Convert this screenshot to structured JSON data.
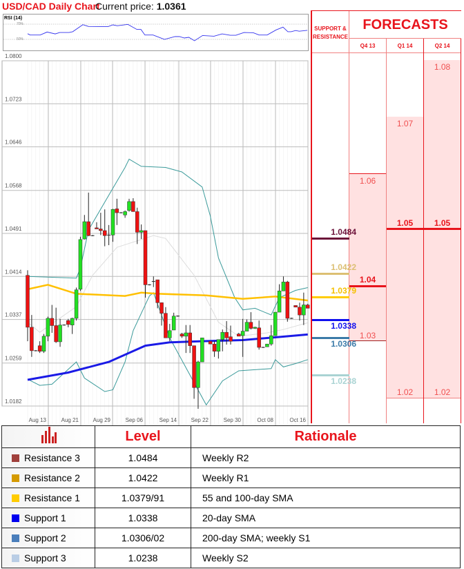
{
  "header": {
    "title": "USD/CAD Daily Chart",
    "current_price_label": "Current price:",
    "current_price": "1.0361"
  },
  "rsi": {
    "label": "RSI (14)",
    "levels": [
      "70%",
      "50%"
    ],
    "color": "#3333ee"
  },
  "forecast_panel": {
    "title": "FORECASTS",
    "sr_header": "SUPPORT & RESISTANCE",
    "quarters": [
      {
        "label": "Q4 13",
        "high": "1.06",
        "central": "1.04",
        "low": "1.03"
      },
      {
        "label": "Q1 14",
        "high": "1.07",
        "central": "1.05",
        "low": "1.02"
      },
      {
        "label": "Q2 14",
        "high": "1.08",
        "central": "1.05",
        "low": "1.02"
      }
    ],
    "sr_levels": [
      {
        "value": "1.0484",
        "color": "#6b1038"
      },
      {
        "value": "1.0422",
        "color": "#dcbf72"
      },
      {
        "value": "1.0379",
        "color": "#ffcc00"
      },
      {
        "value": "1.0338",
        "color": "#1010ee"
      },
      {
        "value": "1.0306",
        "color": "#3a7aa8"
      },
      {
        "value": "1.0238",
        "color": "#a9d3d3"
      }
    ],
    "accent_color": "#e8141c"
  },
  "table": {
    "headers": [
      "",
      "Level",
      "Rationale"
    ],
    "header_icon": "bar-chart-icon",
    "rows": [
      {
        "name": "Resistance 3",
        "level": "1.0484",
        "rationale": "Weekly R2",
        "color": "#a0403c"
      },
      {
        "name": "Resistance 2",
        "level": "1.0422",
        "rationale": "Weekly R1",
        "color": "#d49a00"
      },
      {
        "name": "Resistance 1",
        "level": "1.0379/91",
        "rationale": "55 and 100-day SMA",
        "color": "#ffcc00"
      },
      {
        "name": "Support 1",
        "level": "1.0338",
        "rationale": "20-day SMA",
        "color": "#0000ee"
      },
      {
        "name": "Support 2",
        "level": "1.0306/02",
        "rationale": "200-day SMA; weekly S1",
        "color": "#4a7ebb"
      },
      {
        "name": "Support 3",
        "level": "1.0238",
        "rationale": "Weekly S2",
        "color": "#b9cde5"
      }
    ]
  },
  "chart_data": {
    "type": "candlestick",
    "title": "USD/CAD Daily Chart",
    "ylim": [
      1.0182,
      1.08
    ],
    "y_ticks": [
      "1.0800",
      "1.0723",
      "1.0646",
      "1.0568",
      "1.0491",
      "1.0414",
      "1.0337",
      "1.0259",
      "1.0182"
    ],
    "x_ticks": [
      "Aug 13",
      "Aug 21",
      "Aug 29",
      "Sep 06",
      "Sep 14",
      "Sep 22",
      "Sep 30",
      "Oct 08",
      "Oct 16"
    ],
    "grid": true,
    "candle_format": [
      "open",
      "high",
      "low",
      "close"
    ],
    "candles": [
      [
        1.0416,
        1.0425,
        1.0298,
        1.0323
      ],
      [
        1.0323,
        1.0345,
        1.027,
        1.0281
      ],
      [
        1.0281,
        1.0282,
        1.028,
        1.0281
      ],
      [
        1.029,
        1.0298,
        1.0277,
        1.028
      ],
      [
        1.028,
        1.0311,
        1.0277,
        1.0307
      ],
      [
        1.0307,
        1.0342,
        1.0298,
        1.0339
      ],
      [
        1.0339,
        1.0363,
        1.0313,
        1.0326
      ],
      [
        1.0326,
        1.0358,
        1.0295,
        1.0297
      ],
      [
        1.0297,
        1.0338,
        1.0288,
        1.0327
      ],
      [
        1.0327,
        1.0328,
        1.0326,
        1.0327
      ],
      [
        1.0335,
        1.0338,
        1.0323,
        1.0328
      ],
      [
        1.0327,
        1.034,
        1.0311,
        1.0339
      ],
      [
        1.0339,
        1.0394,
        1.0335,
        1.039
      ],
      [
        1.0391,
        1.0485,
        1.0388,
        1.048
      ],
      [
        1.0481,
        1.0524,
        1.048,
        1.0512
      ],
      [
        1.0512,
        1.0564,
        1.0486,
        1.0487
      ],
      [
        1.0487,
        1.0488,
        1.0486,
        1.0487
      ],
      [
        1.0501,
        1.0511,
        1.0499,
        1.0499
      ],
      [
        1.0499,
        1.0528,
        1.0488,
        1.0496
      ],
      [
        1.0496,
        1.0534,
        1.0468,
        1.0487
      ],
      [
        1.0488,
        1.0506,
        1.047,
        1.0488
      ],
      [
        1.0488,
        1.0535,
        1.0476,
        1.0534
      ],
      [
        1.0535,
        1.0553,
        1.0506,
        1.0528
      ],
      [
        1.0528,
        1.0529,
        1.0527,
        1.0528
      ],
      [
        1.0524,
        1.0532,
        1.0519,
        1.053
      ],
      [
        1.0532,
        1.0553,
        1.053,
        1.0548
      ],
      [
        1.0548,
        1.0554,
        1.053,
        1.053
      ],
      [
        1.053,
        1.0537,
        1.0472,
        1.0493
      ],
      [
        1.0493,
        1.0507,
        1.0481,
        1.0496
      ],
      [
        1.0496,
        1.0496,
        1.0376,
        1.0399
      ],
      [
        1.0399,
        1.04,
        1.0398,
        1.0399
      ],
      [
        1.0405,
        1.0414,
        1.0395,
        1.0405
      ],
      [
        1.0408,
        1.0408,
        1.0357,
        1.0367
      ],
      [
        1.0367,
        1.0367,
        1.0326,
        1.0348
      ],
      [
        1.0348,
        1.0359,
        1.0304,
        1.0304
      ],
      [
        1.0304,
        1.0329,
        1.0298,
        1.0317
      ],
      [
        1.0318,
        1.0349,
        1.0318,
        1.0343
      ],
      [
        1.0343,
        1.0344,
        1.0342,
        1.0343
      ],
      [
        1.0311,
        1.0313,
        1.0304,
        1.0307
      ],
      [
        1.0307,
        1.0327,
        1.0277,
        1.0313
      ],
      [
        1.0313,
        1.0327,
        1.0277,
        1.029
      ],
      [
        1.029,
        1.029,
        1.0195,
        1.0215
      ],
      [
        1.0215,
        1.0263,
        1.0177,
        1.0261
      ],
      [
        1.0261,
        1.0304,
        1.0261,
        1.0304
      ],
      null,
      [
        1.0298,
        1.0298,
        1.0293,
        1.0293
      ],
      [
        1.0293,
        1.0298,
        1.027,
        1.028
      ],
      [
        1.028,
        1.0301,
        1.0267,
        1.0301
      ],
      [
        1.0301,
        1.0319,
        1.028,
        1.0314
      ],
      [
        1.0314,
        1.0334,
        1.0292,
        1.0304
      ],
      [
        1.0306,
        1.0326,
        1.0292,
        1.0298
      ],
      null,
      [
        1.0311,
        1.0313,
        1.0307,
        1.0307
      ],
      [
        1.0308,
        1.0338,
        1.027,
        1.0316
      ],
      [
        1.0316,
        1.0337,
        1.0316,
        1.0332
      ],
      [
        1.0332,
        1.035,
        1.0319,
        1.0321
      ],
      [
        1.0321,
        1.0324,
        1.032,
        1.0323
      ],
      [
        1.0322,
        1.0335,
        1.0283,
        1.0287
      ],
      [
        1.0287,
        1.0288,
        1.0286,
        1.0287
      ],
      [
        1.0288,
        1.0293,
        1.0288,
        1.0293
      ],
      [
        1.0293,
        1.0327,
        1.029,
        1.0308
      ],
      [
        1.0308,
        1.035,
        1.0308,
        1.035
      ],
      [
        1.035,
        1.04,
        1.035,
        1.0388
      ],
      [
        1.0388,
        1.0414,
        1.0388,
        1.0404
      ],
      [
        1.0404,
        1.0406,
        1.0333,
        1.0339
      ],
      [
        1.0339,
        1.034,
        1.0338,
        1.0339
      ],
      [
        1.0362,
        1.0362,
        1.0359,
        1.0359
      ],
      [
        1.0359,
        1.0367,
        1.0335,
        1.0345
      ],
      [
        1.0345,
        1.0385,
        1.0327,
        1.0363
      ],
      [
        1.0363,
        1.0365,
        1.0357,
        1.0357
      ]
    ],
    "lines": [
      {
        "id": "sma-55-100",
        "color": "#ffc000",
        "points": [
          [
            0,
            1.0391
          ],
          [
            5,
            1.0399
          ],
          [
            12,
            1.0383
          ],
          [
            24,
            1.0379
          ],
          [
            28,
            1.0385
          ],
          [
            32,
            1.0383
          ],
          [
            44,
            1.038
          ],
          [
            53,
            1.0374
          ],
          [
            61,
            1.0378
          ],
          [
            69,
            1.0371
          ]
        ]
      },
      {
        "id": "sma-200",
        "color": "#1a1ae6",
        "points": [
          [
            0,
            1.0229
          ],
          [
            10,
            1.0242
          ],
          [
            20,
            1.0261
          ],
          [
            29,
            1.029
          ],
          [
            35,
            1.0296
          ],
          [
            43,
            1.0298
          ],
          [
            53,
            1.03
          ],
          [
            61,
            1.0305
          ],
          [
            69,
            1.031
          ]
        ]
      },
      {
        "id": "bollinger-upper",
        "color": "#3a9a9a",
        "points": [
          [
            0,
            1.0414
          ],
          [
            12,
            1.0411
          ],
          [
            13,
            1.0429
          ],
          [
            15,
            1.0497
          ],
          [
            19,
            1.0547
          ],
          [
            24,
            1.0609
          ],
          [
            25,
            1.0624
          ],
          [
            28,
            1.0611
          ],
          [
            34,
            1.0609
          ],
          [
            38,
            1.0601
          ],
          [
            43,
            1.0574
          ],
          [
            45,
            1.0522
          ],
          [
            47,
            1.0447
          ],
          [
            51,
            1.0376
          ],
          [
            53,
            1.0354
          ],
          [
            56,
            1.0357
          ],
          [
            60,
            1.0345
          ],
          [
            62,
            1.0376
          ],
          [
            66,
            1.0389
          ],
          [
            69,
            1.0394
          ]
        ]
      },
      {
        "id": "bollinger-lower",
        "color": "#3a9a9a",
        "points": [
          [
            0,
            1.023
          ],
          [
            3,
            1.0219
          ],
          [
            6,
            1.0221
          ],
          [
            9,
            1.0241
          ],
          [
            12,
            1.0261
          ],
          [
            14,
            1.0232
          ],
          [
            19,
            1.0208
          ],
          [
            21,
            1.0211
          ],
          [
            24,
            1.0261
          ],
          [
            26,
            1.0317
          ],
          [
            30,
            1.0379
          ],
          [
            31,
            1.0385
          ],
          [
            35,
            1.0304
          ],
          [
            44,
            1.0184
          ],
          [
            48,
            1.0227
          ],
          [
            52,
            1.0245
          ],
          [
            60,
            1.0249
          ],
          [
            61,
            1.0265
          ],
          [
            63,
            1.0252
          ],
          [
            66,
            1.0258
          ],
          [
            69,
            1.0265
          ]
        ]
      },
      {
        "id": "bollinger-mid",
        "color": "#dddddd",
        "points": [
          [
            0,
            1.0332
          ],
          [
            3,
            1.0314
          ],
          [
            12,
            1.036
          ],
          [
            16,
            1.0416
          ],
          [
            22,
            1.0466
          ],
          [
            31,
            1.0487
          ],
          [
            34,
            1.0482
          ],
          [
            41,
            1.0416
          ],
          [
            47,
            1.0332
          ],
          [
            52,
            1.0307
          ],
          [
            59,
            1.0313
          ],
          [
            63,
            1.0319
          ],
          [
            69,
            1.0331
          ]
        ]
      }
    ],
    "rsi_points": [
      [
        0,
        57.5
      ],
      [
        0.6,
        55.7
      ],
      [
        3.1,
        55.7
      ],
      [
        4.8,
        59.6
      ],
      [
        6.8,
        57.2
      ],
      [
        7.9,
        59
      ],
      [
        10.2,
        59
      ],
      [
        11.1,
        60.1
      ],
      [
        13.6,
        69.4
      ],
      [
        15,
        67
      ],
      [
        19.8,
        66.7
      ],
      [
        21,
        69.1
      ],
      [
        22.1,
        67.9
      ],
      [
        24.7,
        69.7
      ],
      [
        26.9,
        63.1
      ],
      [
        27.9,
        63.1
      ],
      [
        28.9,
        55.7
      ],
      [
        30.9,
        55.7
      ],
      [
        33.7,
        50
      ],
      [
        36.3,
        53.6
      ],
      [
        37.4,
        53.6
      ],
      [
        38.6,
        51.8
      ],
      [
        39.7,
        52.7
      ],
      [
        41.1,
        48.2
      ],
      [
        43.1,
        55.1
      ],
      [
        45.9,
        54.2
      ],
      [
        47.9,
        57.2
      ],
      [
        49.9,
        55.4
      ],
      [
        51.3,
        55.4
      ],
      [
        53.3,
        59
      ],
      [
        55.6,
        58.7
      ],
      [
        57,
        55.7
      ],
      [
        59,
        55.7
      ],
      [
        61.2,
        62.5
      ],
      [
        62.9,
        66.1
      ],
      [
        64.1,
        60.1
      ],
      [
        64.9,
        60.1
      ],
      [
        66,
        61.6
      ],
      [
        66.9,
        60.7
      ],
      [
        68.9,
        61.9
      ]
    ],
    "colors": {
      "up": "#22e022",
      "down": "#ee1111"
    }
  }
}
